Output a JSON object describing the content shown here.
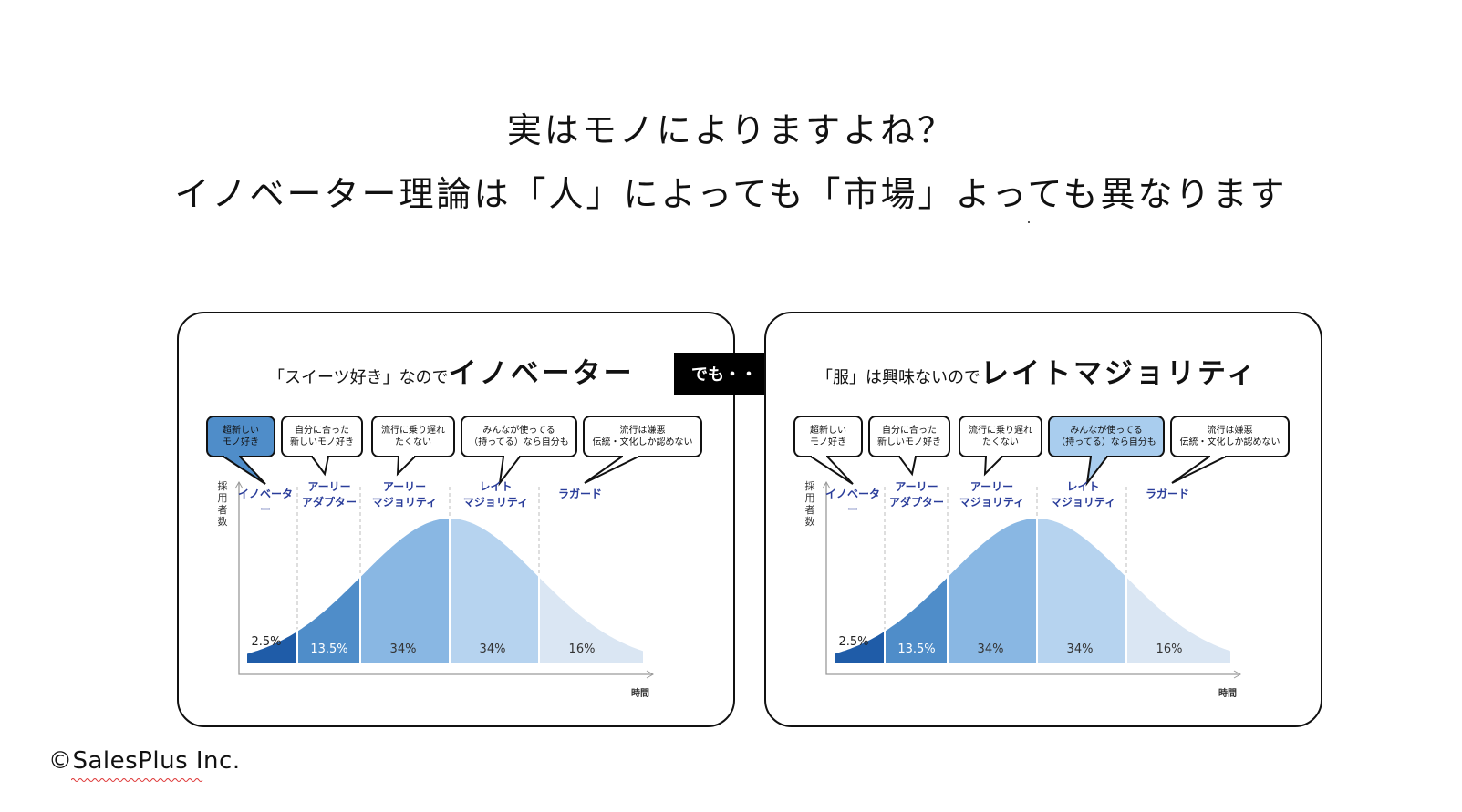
{
  "headline": {
    "line1": "実はモノによりますよね？",
    "line2": "イノベーター理論は「人」によっても「市場」よっても異なります"
  },
  "arrow": {
    "label": "でも・・"
  },
  "copyright": "©SalesPlus Inc.",
  "colors": {
    "innovators": "#1f5ca8",
    "early_adopters": "#4f8dc9",
    "early_majority": "#89b7e3",
    "late_majority": "#b6d3ef",
    "laggards": "#dae6f3",
    "stage_label": "#2a3d9a",
    "highlight_dark": "#4f8dc9",
    "highlight_light": "#a9cdee"
  },
  "chart_common": {
    "y_axis_label": "採用者数",
    "x_axis_label": "時間",
    "stages": [
      {
        "label": "イノベーター",
        "share": 2.5,
        "share_label": "2.5%"
      },
      {
        "label": "アーリー\nアダプター",
        "share": 13.5,
        "share_label": "13.5%"
      },
      {
        "label": "アーリー\nマジョリティ",
        "share": 34,
        "share_label": "34%"
      },
      {
        "label": "レイト\nマジョリティ",
        "share": 34,
        "share_label": "34%"
      },
      {
        "label": "ラガード",
        "share": 16,
        "share_label": "16%"
      }
    ],
    "bubbles": [
      "超新しい\nモノ好き",
      "自分に合った\n新しいモノ好き",
      "流行に乗り遅れ\nたくない",
      "みんなが使ってる\n（持ってる）なら自分も",
      "流行は嫌悪\n伝統・文化しか認めない"
    ]
  },
  "panels": [
    {
      "title_small": "「スイーツ好き」なので",
      "title_big": "イノベーター",
      "highlighted_stage": 0
    },
    {
      "title_small": "「服」は興味ないので",
      "title_big": "レイトマジョリティ",
      "highlighted_stage": 3
    }
  ],
  "chart_data": [
    {
      "type": "area",
      "title": "",
      "xlabel": "時間",
      "ylabel": "採用者数",
      "categories": [
        "イノベーター",
        "アーリーアダプター",
        "アーリーマジョリティ",
        "レイトマジョリティ",
        "ラガード"
      ],
      "values": [
        2.5,
        13.5,
        34,
        34,
        16
      ],
      "value_labels": [
        "2.5%",
        "13.5%",
        "34%",
        "34%",
        "16%"
      ],
      "distribution": "normal",
      "grid": false
    },
    {
      "type": "area",
      "title": "",
      "xlabel": "時間",
      "ylabel": "採用者数",
      "categories": [
        "イノベーター",
        "アーリーアダプター",
        "アーリーマジョリティ",
        "レイトマジョリティ",
        "ラガード"
      ],
      "values": [
        2.5,
        13.5,
        34,
        34,
        16
      ],
      "value_labels": [
        "2.5%",
        "13.5%",
        "34%",
        "34%",
        "16%"
      ],
      "distribution": "normal",
      "grid": false
    }
  ]
}
